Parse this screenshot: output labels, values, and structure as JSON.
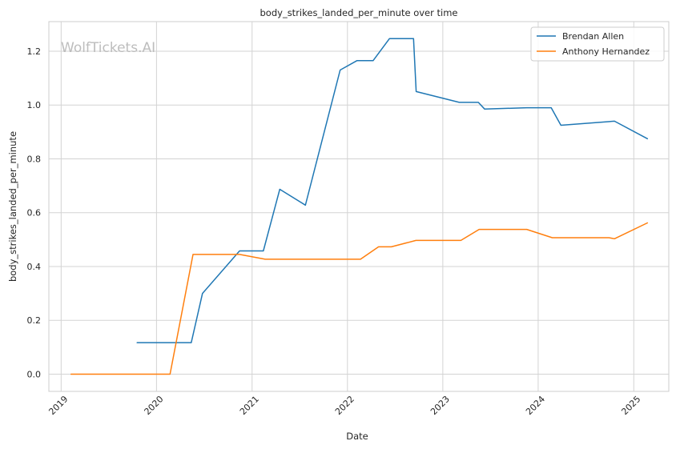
{
  "chart_data": {
    "type": "line",
    "title": "body_strikes_landed_per_minute over time",
    "xlabel": "Date",
    "ylabel": "body_strikes_landed_per_minute",
    "watermark": "WolfTickets.AI",
    "x_axis": {
      "type": "date",
      "range": [
        "2018-11-15",
        "2025-05-15"
      ],
      "ticks": [
        {
          "date": "2019-01-01",
          "label": "2019"
        },
        {
          "date": "2020-01-01",
          "label": "2020"
        },
        {
          "date": "2021-01-01",
          "label": "2021"
        },
        {
          "date": "2022-01-01",
          "label": "2022"
        },
        {
          "date": "2023-01-01",
          "label": "2023"
        },
        {
          "date": "2024-01-01",
          "label": "2024"
        },
        {
          "date": "2025-01-01",
          "label": "2025"
        }
      ]
    },
    "y_axis": {
      "range": [
        -0.064,
        1.31
      ],
      "ticks": [
        {
          "value": 0.0,
          "label": "0.0"
        },
        {
          "value": 0.2,
          "label": "0.2"
        },
        {
          "value": 0.4,
          "label": "0.4"
        },
        {
          "value": 0.6,
          "label": "0.6"
        },
        {
          "value": 0.8,
          "label": "0.8"
        },
        {
          "value": 1.0,
          "label": "1.0"
        },
        {
          "value": 1.2,
          "label": "1.2"
        }
      ]
    },
    "grid": true,
    "legend_position": "top-right",
    "series": [
      {
        "name": "Brendan Allen",
        "color": "#1f77b4",
        "points": [
          {
            "x": "2019-10-19",
            "y": 0.117
          },
          {
            "x": "2020-05-13",
            "y": 0.117
          },
          {
            "x": "2020-06-25",
            "y": 0.3
          },
          {
            "x": "2020-11-14",
            "y": 0.458
          },
          {
            "x": "2021-02-13",
            "y": 0.458
          },
          {
            "x": "2021-04-17",
            "y": 0.687
          },
          {
            "x": "2021-07-24",
            "y": 0.628
          },
          {
            "x": "2021-12-04",
            "y": 1.13
          },
          {
            "x": "2022-02-06",
            "y": 1.165
          },
          {
            "x": "2022-04-09",
            "y": 1.165
          },
          {
            "x": "2022-06-11",
            "y": 1.247
          },
          {
            "x": "2022-09-11",
            "y": 1.247
          },
          {
            "x": "2022-09-21",
            "y": 1.05
          },
          {
            "x": "2023-03-05",
            "y": 1.01
          },
          {
            "x": "2023-05-17",
            "y": 1.01
          },
          {
            "x": "2023-06-10",
            "y": 0.985
          },
          {
            "x": "2023-11-18",
            "y": 0.99
          },
          {
            "x": "2024-02-20",
            "y": 0.99
          },
          {
            "x": "2024-03-28",
            "y": 0.925
          },
          {
            "x": "2024-10-19",
            "y": 0.94
          },
          {
            "x": "2025-02-22",
            "y": 0.875
          }
        ]
      },
      {
        "name": "Anthony Hernandez",
        "color": "#ff7f0e",
        "points": [
          {
            "x": "2019-02-08",
            "y": 0.0
          },
          {
            "x": "2020-02-22",
            "y": 0.0
          },
          {
            "x": "2020-05-20",
            "y": 0.445
          },
          {
            "x": "2020-11-14",
            "y": 0.445
          },
          {
            "x": "2021-02-20",
            "y": 0.427
          },
          {
            "x": "2022-02-20",
            "y": 0.427
          },
          {
            "x": "2022-04-30",
            "y": 0.473
          },
          {
            "x": "2022-06-18",
            "y": 0.473
          },
          {
            "x": "2022-09-20",
            "y": 0.497
          },
          {
            "x": "2023-03-11",
            "y": 0.497
          },
          {
            "x": "2023-05-20",
            "y": 0.538
          },
          {
            "x": "2023-11-18",
            "y": 0.538
          },
          {
            "x": "2024-02-24",
            "y": 0.507
          },
          {
            "x": "2024-09-28",
            "y": 0.507
          },
          {
            "x": "2024-10-19",
            "y": 0.503
          },
          {
            "x": "2025-02-22",
            "y": 0.562
          }
        ]
      }
    ]
  }
}
